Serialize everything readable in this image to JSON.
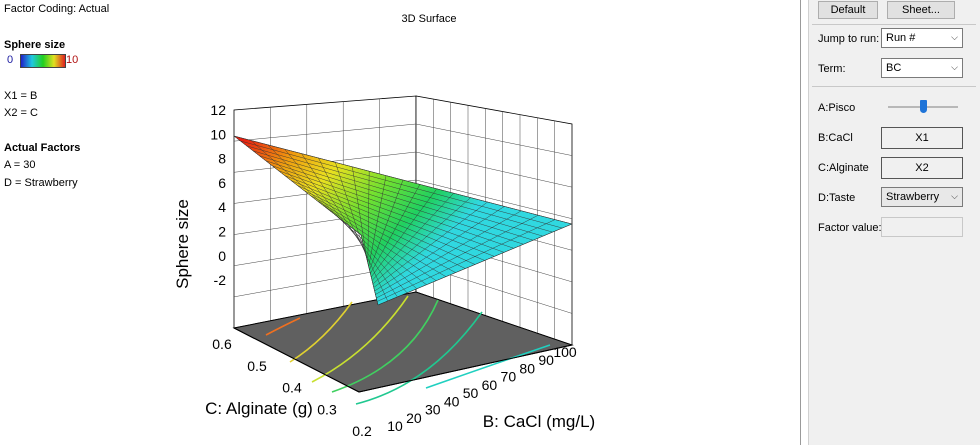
{
  "left_info": {
    "factor_coding": "Factor Coding: Actual",
    "response_name": "Sphere size",
    "range_min": "0",
    "range_max": "10",
    "x1": "X1 = B",
    "x2": "X2 = C",
    "actual_factors_heading": "Actual Factors",
    "factor_a": "A = 30",
    "factor_d": "D = Strawberry"
  },
  "plot": {
    "title": "3D Surface",
    "z_label": "Sphere size",
    "x_label": "B: CaCl (mg/L)",
    "y_label": "C: Alginate (g)",
    "z_ticks": [
      "12",
      "10",
      "8",
      "6",
      "4",
      "2",
      "0",
      "-2"
    ],
    "x_ticks": [
      "10",
      "20",
      "30",
      "40",
      "50",
      "60",
      "70",
      "80",
      "90",
      "100"
    ],
    "y_ticks": [
      "0.6",
      "0.5",
      "0.4",
      "0.3",
      "0.2"
    ],
    "colors": {
      "low": "#2020c8",
      "mid": "#20d020",
      "high": "#e02020",
      "floor": "#606060"
    }
  },
  "panel": {
    "default_label": "Default",
    "sheet_label": "Sheet...",
    "jump_label": "Jump to run:",
    "jump_value": "Run #",
    "term_label": "Term:",
    "term_value": "BC",
    "pisco_label": "A:Pisco",
    "cacl_label": "B:CaCl",
    "cacl_value": "X1",
    "alginate_label": "C:Alginate",
    "alginate_value": "X2",
    "taste_label": "D:Taste",
    "taste_value": "Strawberry",
    "factor_value_label": "Factor value:",
    "factor_value_input": ""
  }
}
